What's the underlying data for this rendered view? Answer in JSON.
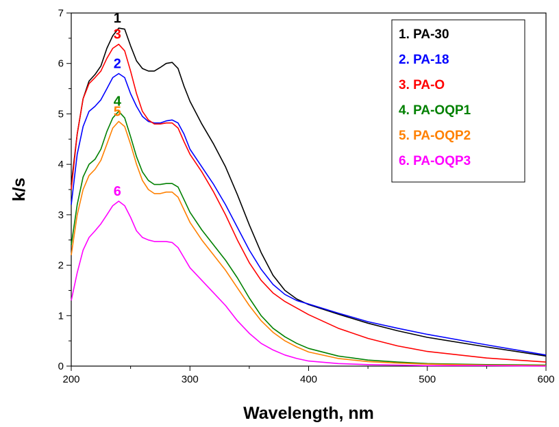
{
  "chart_data": {
    "type": "line",
    "xlabel": "Wavelength, nm",
    "ylabel": "k/s",
    "xlim": [
      200,
      600
    ],
    "ylim": [
      0,
      7
    ],
    "x_ticks": [
      200,
      300,
      400,
      500,
      600
    ],
    "y_ticks": [
      0,
      1,
      2,
      3,
      4,
      5,
      6,
      7
    ],
    "grid": false,
    "legend_position": "top-right",
    "series": [
      {
        "legend": "1.  PA-30",
        "label": "1",
        "color": "#000000",
        "points": [
          [
            200,
            3.6
          ],
          [
            205,
            4.6
          ],
          [
            210,
            5.3
          ],
          [
            215,
            5.65
          ],
          [
            220,
            5.78
          ],
          [
            225,
            5.95
          ],
          [
            230,
            6.3
          ],
          [
            235,
            6.55
          ],
          [
            240,
            6.7
          ],
          [
            245,
            6.68
          ],
          [
            250,
            6.35
          ],
          [
            255,
            6.05
          ],
          [
            260,
            5.9
          ],
          [
            265,
            5.85
          ],
          [
            270,
            5.85
          ],
          [
            275,
            5.92
          ],
          [
            280,
            6.0
          ],
          [
            285,
            6.02
          ],
          [
            290,
            5.9
          ],
          [
            295,
            5.55
          ],
          [
            300,
            5.25
          ],
          [
            310,
            4.8
          ],
          [
            320,
            4.4
          ],
          [
            330,
            3.95
          ],
          [
            340,
            3.4
          ],
          [
            350,
            2.8
          ],
          [
            360,
            2.25
          ],
          [
            370,
            1.8
          ],
          [
            380,
            1.5
          ],
          [
            390,
            1.33
          ],
          [
            400,
            1.22
          ],
          [
            425,
            1.03
          ],
          [
            450,
            0.85
          ],
          [
            475,
            0.7
          ],
          [
            500,
            0.57
          ],
          [
            550,
            0.38
          ],
          [
            600,
            0.2
          ]
        ]
      },
      {
        "legend": "2.  PA-18",
        "label": "2",
        "color": "#0000ff",
        "points": [
          [
            200,
            3.2
          ],
          [
            205,
            4.2
          ],
          [
            210,
            4.75
          ],
          [
            215,
            5.05
          ],
          [
            220,
            5.15
          ],
          [
            225,
            5.28
          ],
          [
            230,
            5.5
          ],
          [
            235,
            5.72
          ],
          [
            240,
            5.8
          ],
          [
            245,
            5.72
          ],
          [
            250,
            5.4
          ],
          [
            255,
            5.15
          ],
          [
            260,
            4.95
          ],
          [
            265,
            4.85
          ],
          [
            270,
            4.82
          ],
          [
            275,
            4.82
          ],
          [
            280,
            4.86
          ],
          [
            285,
            4.88
          ],
          [
            290,
            4.82
          ],
          [
            295,
            4.6
          ],
          [
            300,
            4.3
          ],
          [
            310,
            3.95
          ],
          [
            320,
            3.6
          ],
          [
            330,
            3.2
          ],
          [
            340,
            2.75
          ],
          [
            350,
            2.3
          ],
          [
            360,
            1.92
          ],
          [
            370,
            1.62
          ],
          [
            380,
            1.42
          ],
          [
            390,
            1.3
          ],
          [
            400,
            1.23
          ],
          [
            425,
            1.05
          ],
          [
            450,
            0.88
          ],
          [
            475,
            0.75
          ],
          [
            500,
            0.63
          ],
          [
            550,
            0.42
          ],
          [
            600,
            0.22
          ]
        ]
      },
      {
        "legend": "3.  PA-O",
        "label": "3",
        "color": "#ff0000",
        "points": [
          [
            200,
            3.5
          ],
          [
            205,
            4.6
          ],
          [
            210,
            5.3
          ],
          [
            215,
            5.6
          ],
          [
            220,
            5.72
          ],
          [
            225,
            5.85
          ],
          [
            230,
            6.1
          ],
          [
            235,
            6.3
          ],
          [
            240,
            6.38
          ],
          [
            245,
            6.25
          ],
          [
            250,
            5.85
          ],
          [
            255,
            5.4
          ],
          [
            260,
            5.05
          ],
          [
            265,
            4.88
          ],
          [
            270,
            4.8
          ],
          [
            275,
            4.8
          ],
          [
            280,
            4.82
          ],
          [
            285,
            4.82
          ],
          [
            290,
            4.72
          ],
          [
            295,
            4.45
          ],
          [
            300,
            4.2
          ],
          [
            310,
            3.85
          ],
          [
            320,
            3.45
          ],
          [
            330,
            3.0
          ],
          [
            340,
            2.5
          ],
          [
            350,
            2.05
          ],
          [
            360,
            1.7
          ],
          [
            370,
            1.45
          ],
          [
            380,
            1.28
          ],
          [
            390,
            1.15
          ],
          [
            400,
            1.02
          ],
          [
            425,
            0.75
          ],
          [
            450,
            0.55
          ],
          [
            475,
            0.4
          ],
          [
            500,
            0.29
          ],
          [
            550,
            0.16
          ],
          [
            600,
            0.08
          ]
        ]
      },
      {
        "legend": "4.  PA-OQP1",
        "label": "4",
        "color": "#008000",
        "points": [
          [
            200,
            2.4
          ],
          [
            205,
            3.2
          ],
          [
            210,
            3.75
          ],
          [
            215,
            4.0
          ],
          [
            220,
            4.1
          ],
          [
            225,
            4.3
          ],
          [
            230,
            4.65
          ],
          [
            235,
            4.92
          ],
          [
            240,
            5.05
          ],
          [
            245,
            4.92
          ],
          [
            250,
            4.55
          ],
          [
            255,
            4.15
          ],
          [
            260,
            3.85
          ],
          [
            265,
            3.68
          ],
          [
            270,
            3.6
          ],
          [
            275,
            3.6
          ],
          [
            280,
            3.62
          ],
          [
            285,
            3.62
          ],
          [
            290,
            3.55
          ],
          [
            295,
            3.3
          ],
          [
            300,
            3.05
          ],
          [
            310,
            2.7
          ],
          [
            320,
            2.4
          ],
          [
            330,
            2.1
          ],
          [
            340,
            1.75
          ],
          [
            350,
            1.35
          ],
          [
            360,
            1.0
          ],
          [
            370,
            0.75
          ],
          [
            380,
            0.58
          ],
          [
            390,
            0.45
          ],
          [
            400,
            0.35
          ],
          [
            425,
            0.2
          ],
          [
            450,
            0.12
          ],
          [
            475,
            0.08
          ],
          [
            500,
            0.05
          ],
          [
            550,
            0.03
          ],
          [
            600,
            0.02
          ]
        ]
      },
      {
        "legend": "5.  PA-OQP2",
        "label": "5",
        "color": "#ff8000",
        "points": [
          [
            200,
            2.2
          ],
          [
            205,
            3.0
          ],
          [
            210,
            3.5
          ],
          [
            215,
            3.78
          ],
          [
            220,
            3.9
          ],
          [
            225,
            4.08
          ],
          [
            230,
            4.4
          ],
          [
            235,
            4.72
          ],
          [
            240,
            4.85
          ],
          [
            245,
            4.75
          ],
          [
            250,
            4.4
          ],
          [
            255,
            4.0
          ],
          [
            260,
            3.68
          ],
          [
            265,
            3.5
          ],
          [
            270,
            3.42
          ],
          [
            275,
            3.42
          ],
          [
            280,
            3.45
          ],
          [
            285,
            3.45
          ],
          [
            290,
            3.35
          ],
          [
            295,
            3.1
          ],
          [
            300,
            2.85
          ],
          [
            310,
            2.5
          ],
          [
            320,
            2.2
          ],
          [
            330,
            1.9
          ],
          [
            340,
            1.55
          ],
          [
            350,
            1.2
          ],
          [
            360,
            0.9
          ],
          [
            370,
            0.67
          ],
          [
            380,
            0.5
          ],
          [
            390,
            0.38
          ],
          [
            400,
            0.28
          ],
          [
            425,
            0.15
          ],
          [
            450,
            0.09
          ],
          [
            475,
            0.06
          ],
          [
            500,
            0.04
          ],
          [
            550,
            0.02
          ],
          [
            600,
            0.01
          ]
        ]
      },
      {
        "legend": "6.  PA-OQP3",
        "label": "6",
        "color": "#ff00ff",
        "points": [
          [
            200,
            1.3
          ],
          [
            205,
            1.85
          ],
          [
            210,
            2.3
          ],
          [
            215,
            2.55
          ],
          [
            220,
            2.68
          ],
          [
            225,
            2.82
          ],
          [
            230,
            3.0
          ],
          [
            235,
            3.18
          ],
          [
            240,
            3.27
          ],
          [
            245,
            3.18
          ],
          [
            250,
            2.95
          ],
          [
            255,
            2.68
          ],
          [
            260,
            2.55
          ],
          [
            265,
            2.5
          ],
          [
            270,
            2.47
          ],
          [
            275,
            2.47
          ],
          [
            280,
            2.47
          ],
          [
            285,
            2.45
          ],
          [
            290,
            2.35
          ],
          [
            295,
            2.15
          ],
          [
            300,
            1.95
          ],
          [
            310,
            1.7
          ],
          [
            320,
            1.45
          ],
          [
            330,
            1.2
          ],
          [
            340,
            0.9
          ],
          [
            350,
            0.65
          ],
          [
            360,
            0.45
          ],
          [
            370,
            0.32
          ],
          [
            380,
            0.22
          ],
          [
            390,
            0.15
          ],
          [
            400,
            0.1
          ],
          [
            425,
            0.05
          ],
          [
            450,
            0.03
          ],
          [
            475,
            0.02
          ],
          [
            500,
            0.01
          ],
          [
            550,
            0.01
          ],
          [
            600,
            0.0
          ]
        ]
      }
    ]
  }
}
